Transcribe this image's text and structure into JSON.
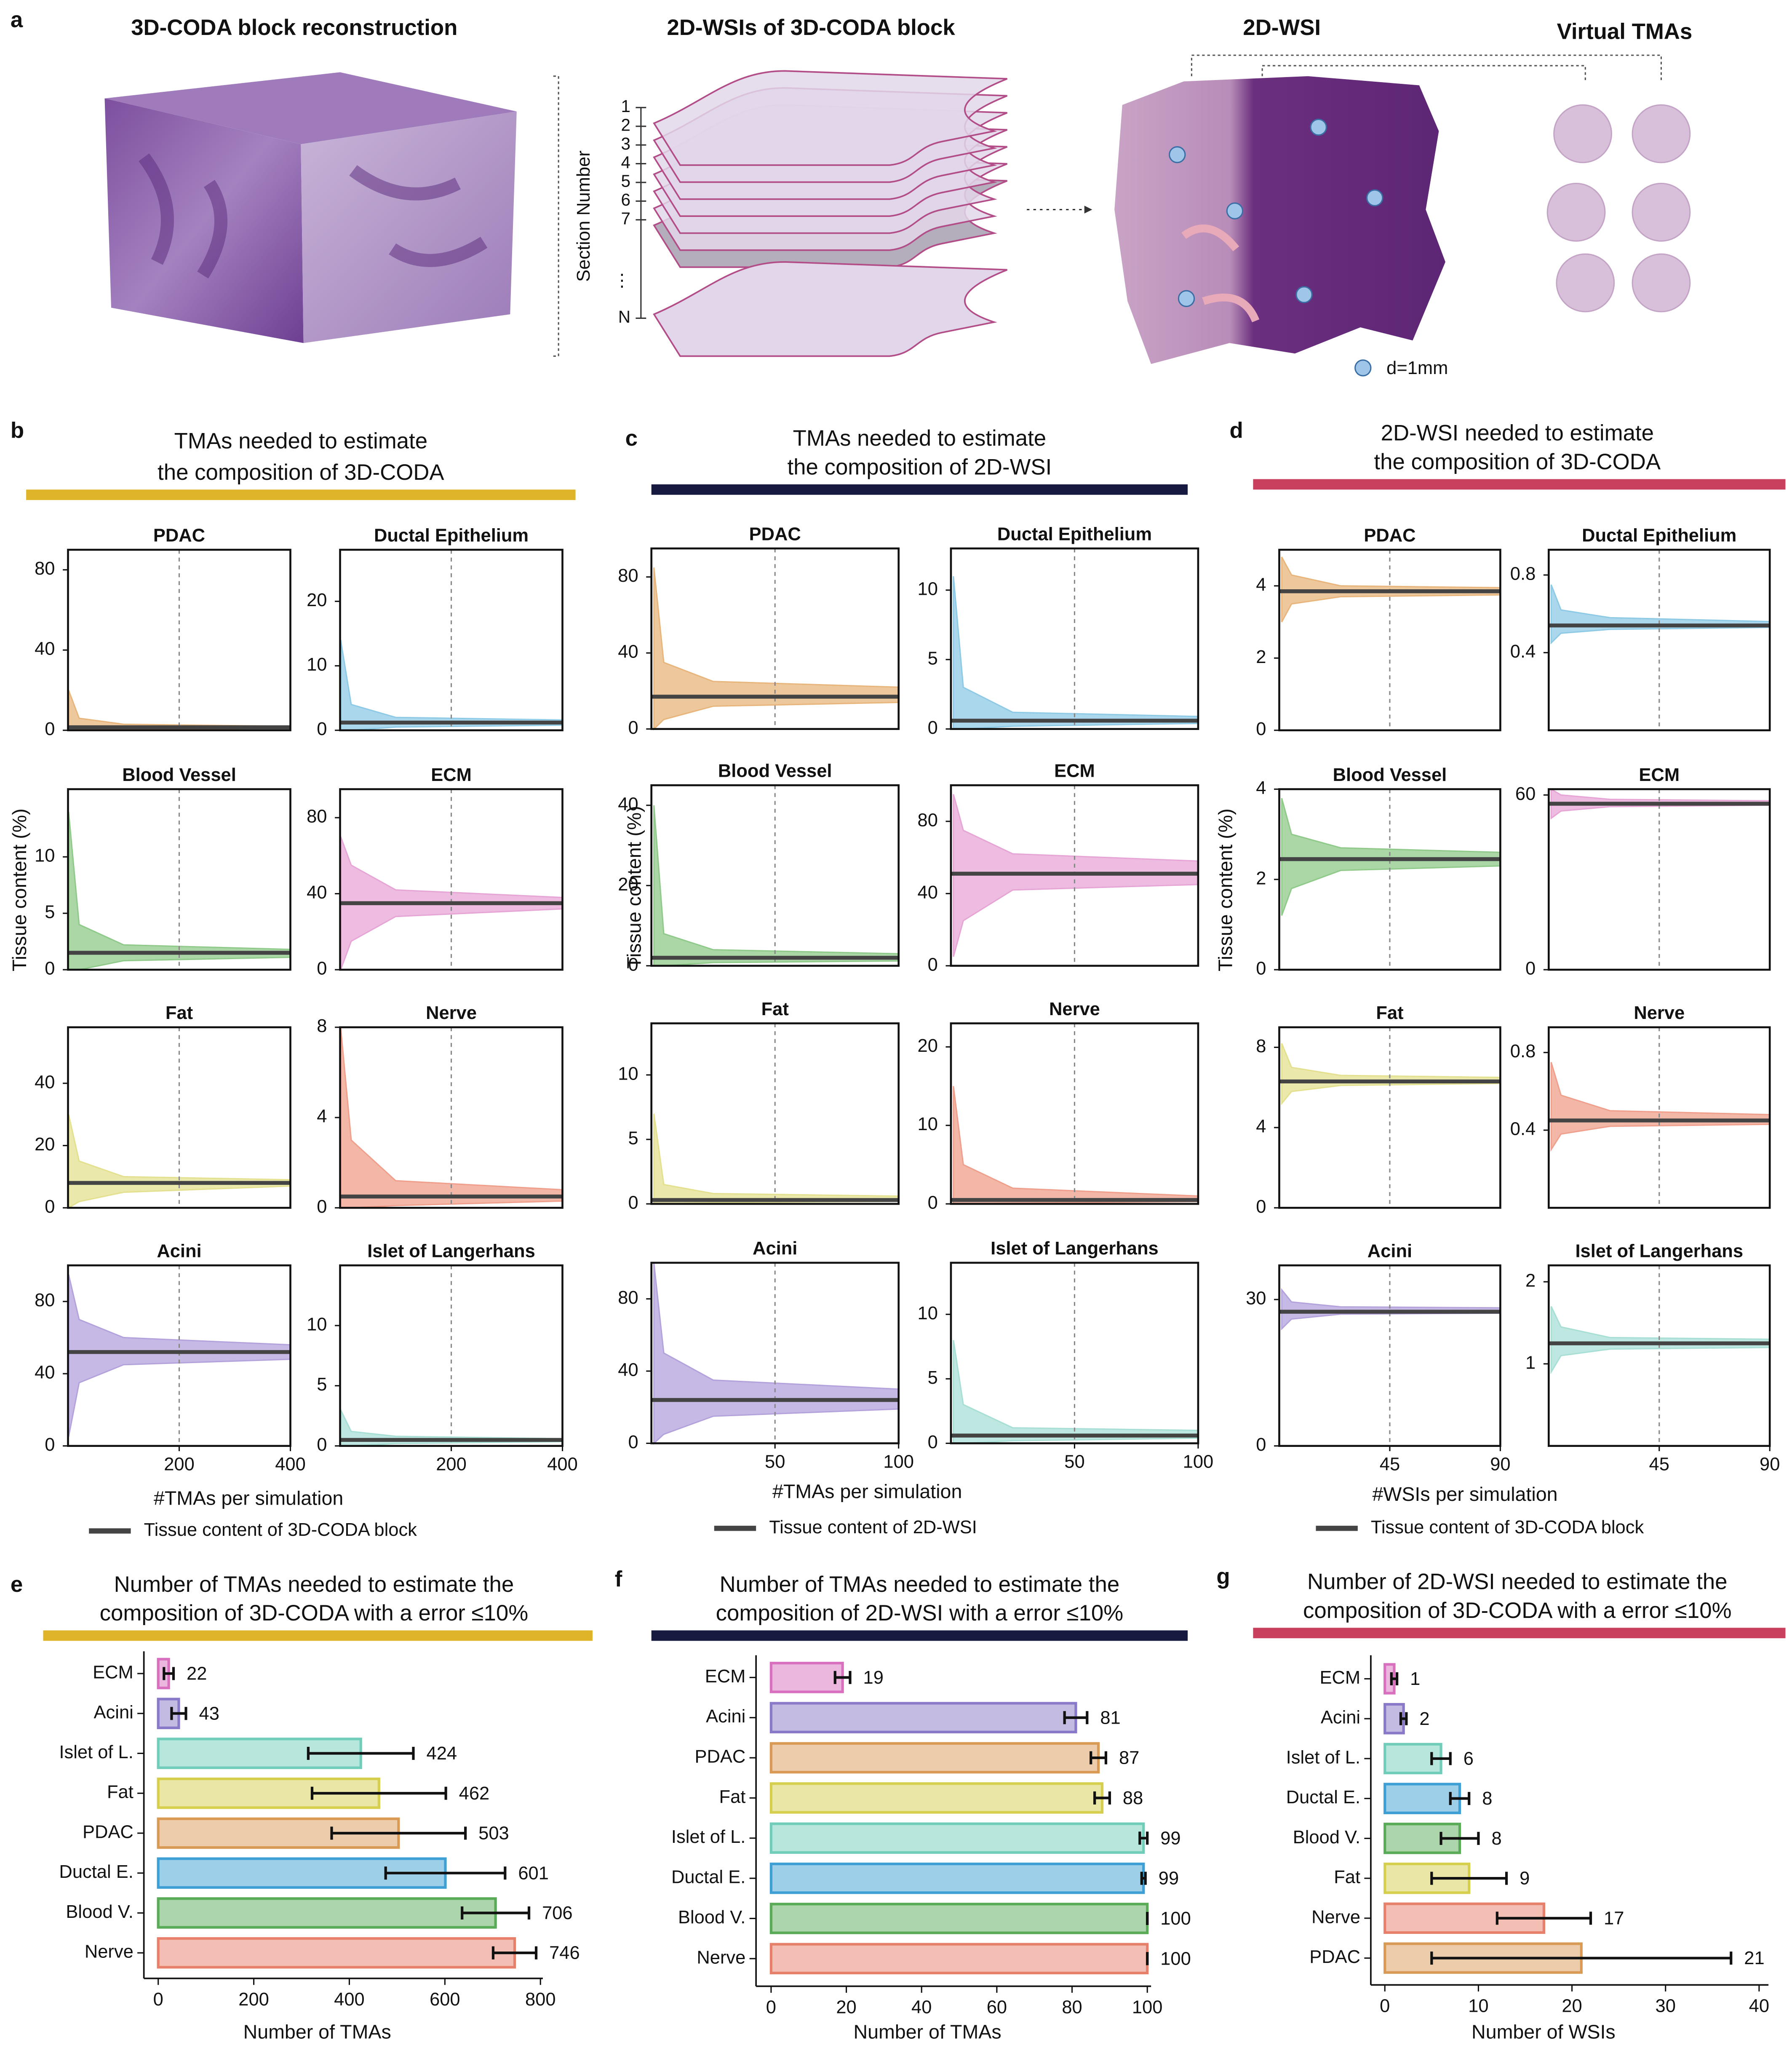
{
  "panel_a": {
    "label": "a",
    "titles": [
      "3D-CODA block reconstruction",
      "2D-WSIs of 3D-CODA block",
      "2D-WSI",
      "Virtual TMAs"
    ],
    "axis_label": "Section Number",
    "sections": [
      "1",
      "2",
      "3",
      "4",
      "5",
      "6",
      "7",
      "N"
    ],
    "legend": "d=1mm"
  },
  "chart_data": [
    {
      "type": "line",
      "label": "b",
      "title": [
        "TMAs needed to estimate",
        "the composition of 3D-CODA"
      ],
      "accent": "#e0b429",
      "ylabel": "Tissue content (%)",
      "xlabel": "#TMAs per simulation",
      "legend": "Tissue content of 3D-CODA block",
      "xlim": [
        0,
        400
      ],
      "xticks": [
        200,
        400
      ],
      "vline": 200,
      "x": [
        1,
        20,
        100,
        400
      ],
      "panels": [
        {
          "name": "PDAC",
          "color": "#e8b57c",
          "mean": 1.5,
          "ylim": [
            0,
            90
          ],
          "yticks": [
            0,
            40,
            80
          ],
          "high": [
            20,
            6,
            3,
            2
          ],
          "low": [
            0,
            0,
            0.5,
            1
          ]
        },
        {
          "name": "Ductal Epithelium",
          "color": "#8ecae6",
          "mean": 1.2,
          "ylim": [
            0,
            28
          ],
          "yticks": [
            0,
            10,
            20
          ],
          "high": [
            14,
            4,
            2,
            1.6
          ],
          "low": [
            0,
            0,
            0.5,
            0.8
          ]
        },
        {
          "name": "Blood Vessel",
          "color": "#8fca8a",
          "mean": 1.5,
          "ylim": [
            0,
            16
          ],
          "yticks": [
            0,
            5,
            10
          ],
          "high": [
            14,
            4,
            2.2,
            1.8
          ],
          "low": [
            0,
            0,
            0.8,
            1.1
          ]
        },
        {
          "name": "ECM",
          "color": "#e7a5d6",
          "mean": 35,
          "ylim": [
            0,
            95
          ],
          "yticks": [
            0,
            40,
            80
          ],
          "high": [
            70,
            55,
            42,
            38
          ],
          "low": [
            0,
            15,
            28,
            32
          ]
        },
        {
          "name": "Fat",
          "color": "#e3e08f",
          "mean": 8,
          "ylim": [
            0,
            58
          ],
          "yticks": [
            0,
            20,
            40
          ],
          "high": [
            30,
            15,
            10,
            9
          ],
          "low": [
            0,
            2,
            5,
            7
          ]
        },
        {
          "name": "Nerve",
          "color": "#ef9f8b",
          "mean": 0.5,
          "ylim": [
            0,
            8
          ],
          "yticks": [
            0,
            4,
            8
          ],
          "high": [
            8,
            3,
            1.2,
            0.8
          ],
          "low": [
            0,
            0,
            0.1,
            0.3
          ]
        },
        {
          "name": "Acini",
          "color": "#b3a2dc",
          "mean": 52,
          "ylim": [
            0,
            100
          ],
          "yticks": [
            0,
            40,
            80
          ],
          "high": [
            95,
            70,
            60,
            56
          ],
          "low": [
            5,
            35,
            45,
            48
          ]
        },
        {
          "name": "Islet of Langerhans",
          "color": "#a7dfd5",
          "mean": 0.5,
          "ylim": [
            0,
            15
          ],
          "yticks": [
            0,
            5,
            10
          ],
          "high": [
            3,
            1.2,
            0.8,
            0.6
          ],
          "low": [
            0,
            0,
            0.2,
            0.35
          ]
        }
      ]
    },
    {
      "type": "line",
      "label": "c",
      "title": [
        "TMAs needed to estimate",
        "the composition of 2D-WSI"
      ],
      "accent": "#161a40",
      "ylabel": "Tissue content (%)",
      "xlabel": "#TMAs per simulation",
      "legend": "Tissue content of 2D-WSI",
      "xlim": [
        0,
        100
      ],
      "xticks": [
        50,
        100
      ],
      "vline": 50,
      "x": [
        1,
        5,
        25,
        100
      ],
      "panels": [
        {
          "name": "PDAC",
          "color": "#e8b57c",
          "mean": 17,
          "ylim": [
            0,
            95
          ],
          "yticks": [
            0,
            40,
            80
          ],
          "high": [
            85,
            35,
            25,
            22
          ],
          "low": [
            0,
            5,
            12,
            14
          ]
        },
        {
          "name": "Ductal Epithelium",
          "color": "#8ecae6",
          "mean": 0.6,
          "ylim": [
            0,
            13
          ],
          "yticks": [
            0,
            5,
            10
          ],
          "high": [
            11,
            3,
            1.2,
            0.9
          ],
          "low": [
            0,
            0,
            0.2,
            0.4
          ]
        },
        {
          "name": "Blood Vessel",
          "color": "#8fca8a",
          "mean": 2,
          "ylim": [
            0,
            45
          ],
          "yticks": [
            0,
            20,
            40
          ],
          "high": [
            40,
            8,
            4,
            3
          ],
          "low": [
            0,
            0,
            0.8,
            1.2
          ]
        },
        {
          "name": "ECM",
          "color": "#e7a5d6",
          "mean": 51,
          "ylim": [
            0,
            100
          ],
          "yticks": [
            0,
            40,
            80
          ],
          "high": [
            95,
            75,
            62,
            58
          ],
          "low": [
            5,
            25,
            42,
            45
          ]
        },
        {
          "name": "Fat",
          "color": "#e3e08f",
          "mean": 0.3,
          "ylim": [
            0,
            14
          ],
          "yticks": [
            0,
            5,
            10
          ],
          "high": [
            7,
            1.5,
            0.8,
            0.6
          ],
          "low": [
            0,
            0,
            0.1,
            0.2
          ]
        },
        {
          "name": "Nerve",
          "color": "#ef9f8b",
          "mean": 0.5,
          "ylim": [
            0,
            23
          ],
          "yticks": [
            0,
            10,
            20
          ],
          "high": [
            15,
            5,
            2,
            1
          ],
          "low": [
            0,
            0,
            0.1,
            0.3
          ]
        },
        {
          "name": "Acini",
          "color": "#b3a2dc",
          "mean": 24,
          "ylim": [
            0,
            100
          ],
          "yticks": [
            0,
            40,
            80
          ],
          "high": [
            100,
            50,
            35,
            30
          ],
          "low": [
            0,
            5,
            15,
            19
          ]
        },
        {
          "name": "Islet of Langerhans",
          "color": "#a7dfd5",
          "mean": 0.6,
          "ylim": [
            0,
            14
          ],
          "yticks": [
            0,
            5,
            10
          ],
          "high": [
            8,
            3,
            1.2,
            1
          ],
          "low": [
            0,
            0,
            0.2,
            0.4
          ]
        }
      ]
    },
    {
      "type": "line",
      "label": "d",
      "title": [
        "2D-WSI needed to estimate",
        "the composition of 3D-CODA"
      ],
      "accent": "#c8405e",
      "ylabel": "Tissue content (%)",
      "xlabel": "#WSIs per simulation",
      "legend": "Tissue content of 3D-CODA block",
      "xlim": [
        0,
        90
      ],
      "xticks": [
        45,
        90
      ],
      "vline": 45,
      "x": [
        1,
        5,
        25,
        90
      ],
      "panels": [
        {
          "name": "PDAC",
          "color": "#e8b57c",
          "mean": 3.85,
          "ylim": [
            0,
            5
          ],
          "yticks": [
            0,
            2,
            4
          ],
          "high": [
            4.8,
            4.3,
            4.0,
            3.95
          ],
          "low": [
            3.0,
            3.5,
            3.7,
            3.75
          ]
        },
        {
          "name": "Ductal Epithelium",
          "color": "#8ecae6",
          "mean": 0.54,
          "ylim": [
            0,
            0.93
          ],
          "yticks": [
            0.4,
            0.8
          ],
          "high": [
            0.75,
            0.62,
            0.58,
            0.56
          ],
          "low": [
            0.45,
            0.5,
            0.52,
            0.53
          ]
        },
        {
          "name": "Blood Vessel",
          "color": "#8fca8a",
          "mean": 2.45,
          "ylim": [
            0,
            4
          ],
          "yticks": [
            0,
            2,
            4
          ],
          "high": [
            3.8,
            3.0,
            2.7,
            2.6
          ],
          "low": [
            1.2,
            1.8,
            2.2,
            2.3
          ]
        },
        {
          "name": "ECM",
          "color": "#e7a5d6",
          "mean": 57,
          "ylim": [
            0,
            62
          ],
          "yticks": [
            0,
            60
          ],
          "high": [
            62,
            60,
            58.5,
            58
          ],
          "low": [
            52,
            54.5,
            56,
            56.5
          ]
        },
        {
          "name": "Fat",
          "color": "#e3e08f",
          "mean": 6.3,
          "ylim": [
            0,
            9
          ],
          "yticks": [
            0,
            4,
            8
          ],
          "high": [
            8.2,
            7,
            6.6,
            6.5
          ],
          "low": [
            5.2,
            5.8,
            6.1,
            6.2
          ]
        },
        {
          "name": "Nerve",
          "color": "#ef9f8b",
          "mean": 0.45,
          "ylim": [
            0,
            0.93
          ],
          "yticks": [
            0.4,
            0.8
          ],
          "high": [
            0.75,
            0.58,
            0.5,
            0.48
          ],
          "low": [
            0.3,
            0.38,
            0.42,
            0.43
          ]
        },
        {
          "name": "Acini",
          "color": "#b3a2dc",
          "mean": 27.5,
          "ylim": [
            0,
            37
          ],
          "yticks": [
            0,
            30
          ],
          "high": [
            32,
            29.5,
            28.5,
            28.3
          ],
          "low": [
            24,
            26,
            27,
            27.2
          ]
        },
        {
          "name": "Islet of Langerhans",
          "color": "#a7dfd5",
          "mean": 1.25,
          "ylim": [
            0,
            2.2
          ],
          "yticks": [
            1,
            2
          ],
          "high": [
            1.7,
            1.45,
            1.32,
            1.3
          ],
          "low": [
            0.9,
            1.1,
            1.18,
            1.2
          ]
        }
      ]
    },
    {
      "type": "bar",
      "label": "e",
      "title": [
        "Number of TMAs needed to estimate the",
        "composition of 3D-CODA with a error ≤10%"
      ],
      "accent": "#e0b429",
      "xlabel": "Number of TMAs",
      "xlim": [
        -30,
        805
      ],
      "xticks": [
        0,
        200,
        400,
        600,
        800
      ],
      "categories": [
        "ECM",
        "Acini",
        "Islet of L.",
        "Fat",
        "PDAC",
        "Ductal E.",
        "Blood V.",
        "Nerve"
      ],
      "values": [
        22,
        43,
        424,
        462,
        503,
        601,
        706,
        746
      ],
      "errors": [
        10,
        15,
        110,
        140,
        140,
        125,
        70,
        45
      ],
      "colors": [
        "#d870bf",
        "#8a78c8",
        "#6fcdb9",
        "#d6cf4e",
        "#d99a55",
        "#3d9fd3",
        "#5aab57",
        "#e7806b"
      ]
    },
    {
      "type": "bar",
      "label": "f",
      "title": [
        "Number of TMAs needed to estimate the",
        "composition of 2D-WSI with a error ≤10%"
      ],
      "accent": "#161a40",
      "xlabel": "Number of TMAs",
      "xlim": [
        -4,
        101
      ],
      "xticks": [
        0,
        20,
        40,
        60,
        80,
        100
      ],
      "categories": [
        "ECM",
        "Acini",
        "PDAC",
        "Fat",
        "Islet of L.",
        "Ductal E.",
        "Blood V.",
        "Nerve"
      ],
      "values": [
        19,
        81,
        87,
        88,
        99,
        99,
        100,
        100
      ],
      "errors": [
        2,
        3,
        2,
        2,
        1,
        0.5,
        0,
        0
      ],
      "colors": [
        "#d870bf",
        "#8a78c8",
        "#d99a55",
        "#d6cf4e",
        "#6fcdb9",
        "#3d9fd3",
        "#5aab57",
        "#e7806b"
      ]
    },
    {
      "type": "bar",
      "label": "g",
      "title": [
        "Number of 2D-WSI needed to estimate the",
        "composition of 3D-CODA with a error ≤10%"
      ],
      "accent": "#c8405e",
      "xlabel": "Number of WSIs",
      "xlim": [
        -1.5,
        41
      ],
      "xticks": [
        0,
        10,
        20,
        30,
        40
      ],
      "categories": [
        "ECM",
        "Acini",
        "Islet of L.",
        "Ductal E.",
        "Blood V.",
        "Fat",
        "Nerve",
        "PDAC"
      ],
      "values": [
        1,
        2,
        6,
        8,
        8,
        9,
        17,
        21
      ],
      "errors": [
        0.3,
        0.3,
        1,
        1,
        2,
        4,
        5,
        16
      ],
      "colors": [
        "#d870bf",
        "#8a78c8",
        "#6fcdb9",
        "#3d9fd3",
        "#5aab57",
        "#d6cf4e",
        "#e7806b",
        "#d99a55"
      ]
    }
  ]
}
